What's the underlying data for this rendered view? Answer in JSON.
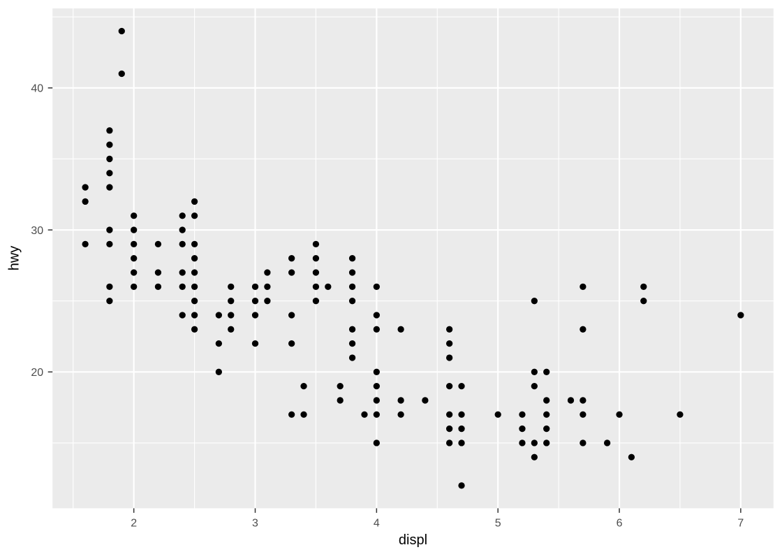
{
  "chart_data": {
    "type": "scatter",
    "title": "",
    "xlabel": "displ",
    "ylabel": "hwy",
    "xlim": [
      1.33,
      7.27
    ],
    "ylim": [
      10.4,
      45.6
    ],
    "x_ticks": [
      2,
      3,
      4,
      5,
      6,
      7
    ],
    "y_ticks": [
      20,
      30,
      40
    ],
    "x_minor_breaks": [
      1.5,
      2.5,
      3.5,
      4.5,
      5.5,
      6.5
    ],
    "y_minor_breaks": [
      15,
      25,
      35,
      45
    ],
    "grid": "on",
    "legend": "none",
    "points": [
      [
        1.6,
        29
      ],
      [
        1.6,
        32
      ],
      [
        1.6,
        33
      ],
      [
        1.8,
        25
      ],
      [
        1.8,
        26
      ],
      [
        1.8,
        29
      ],
      [
        1.8,
        30
      ],
      [
        1.8,
        33
      ],
      [
        1.8,
        34
      ],
      [
        1.8,
        35
      ],
      [
        1.8,
        36
      ],
      [
        1.8,
        37
      ],
      [
        1.9,
        41
      ],
      [
        1.9,
        44
      ],
      [
        2.0,
        26
      ],
      [
        2.0,
        27
      ],
      [
        2.0,
        28
      ],
      [
        2.0,
        29
      ],
      [
        2.0,
        30
      ],
      [
        2.0,
        31
      ],
      [
        2.2,
        26
      ],
      [
        2.2,
        27
      ],
      [
        2.2,
        29
      ],
      [
        2.4,
        24
      ],
      [
        2.4,
        26
      ],
      [
        2.4,
        27
      ],
      [
        2.4,
        29
      ],
      [
        2.4,
        30
      ],
      [
        2.4,
        31
      ],
      [
        2.5,
        23
      ],
      [
        2.5,
        24
      ],
      [
        2.5,
        25
      ],
      [
        2.5,
        26
      ],
      [
        2.5,
        27
      ],
      [
        2.5,
        28
      ],
      [
        2.5,
        29
      ],
      [
        2.5,
        31
      ],
      [
        2.5,
        32
      ],
      [
        2.7,
        20
      ],
      [
        2.7,
        22
      ],
      [
        2.7,
        24
      ],
      [
        2.8,
        23
      ],
      [
        2.8,
        24
      ],
      [
        2.8,
        25
      ],
      [
        2.8,
        26
      ],
      [
        3.0,
        22
      ],
      [
        3.0,
        24
      ],
      [
        3.0,
        25
      ],
      [
        3.0,
        26
      ],
      [
        3.1,
        25
      ],
      [
        3.1,
        26
      ],
      [
        3.1,
        27
      ],
      [
        3.3,
        17
      ],
      [
        3.3,
        22
      ],
      [
        3.3,
        24
      ],
      [
        3.3,
        27
      ],
      [
        3.3,
        28
      ],
      [
        3.4,
        17
      ],
      [
        3.4,
        19
      ],
      [
        3.5,
        25
      ],
      [
        3.5,
        26
      ],
      [
        3.5,
        27
      ],
      [
        3.5,
        28
      ],
      [
        3.5,
        29
      ],
      [
        3.6,
        26
      ],
      [
        3.7,
        18
      ],
      [
        3.7,
        19
      ],
      [
        3.8,
        21
      ],
      [
        3.8,
        22
      ],
      [
        3.8,
        23
      ],
      [
        3.8,
        25
      ],
      [
        3.8,
        26
      ],
      [
        3.8,
        27
      ],
      [
        3.8,
        28
      ],
      [
        3.9,
        17
      ],
      [
        4.0,
        15
      ],
      [
        4.0,
        17
      ],
      [
        4.0,
        18
      ],
      [
        4.0,
        19
      ],
      [
        4.0,
        20
      ],
      [
        4.0,
        23
      ],
      [
        4.0,
        24
      ],
      [
        4.0,
        26
      ],
      [
        4.2,
        17
      ],
      [
        4.2,
        18
      ],
      [
        4.2,
        23
      ],
      [
        4.4,
        18
      ],
      [
        4.6,
        15
      ],
      [
        4.6,
        16
      ],
      [
        4.6,
        17
      ],
      [
        4.6,
        19
      ],
      [
        4.6,
        21
      ],
      [
        4.6,
        22
      ],
      [
        4.6,
        23
      ],
      [
        4.7,
        12
      ],
      [
        4.7,
        15
      ],
      [
        4.7,
        16
      ],
      [
        4.7,
        17
      ],
      [
        4.7,
        19
      ],
      [
        5.0,
        17
      ],
      [
        5.2,
        15
      ],
      [
        5.2,
        16
      ],
      [
        5.2,
        17
      ],
      [
        5.3,
        14
      ],
      [
        5.3,
        15
      ],
      [
        5.3,
        19
      ],
      [
        5.3,
        20
      ],
      [
        5.3,
        25
      ],
      [
        5.4,
        15
      ],
      [
        5.4,
        16
      ],
      [
        5.4,
        17
      ],
      [
        5.4,
        18
      ],
      [
        5.4,
        20
      ],
      [
        5.6,
        18
      ],
      [
        5.7,
        15
      ],
      [
        5.7,
        17
      ],
      [
        5.7,
        18
      ],
      [
        5.7,
        23
      ],
      [
        5.7,
        26
      ],
      [
        5.9,
        15
      ],
      [
        6.0,
        17
      ],
      [
        6.1,
        14
      ],
      [
        6.2,
        25
      ],
      [
        6.2,
        26
      ],
      [
        6.5,
        17
      ],
      [
        7.0,
        24
      ]
    ],
    "colors": {
      "page_background": "#FFFFFF",
      "panel_background": "#EBEBEB",
      "gridline": "#FFFFFF",
      "point": "#000000",
      "tick_mark": "#333333",
      "tick_label": "#4D4D4D",
      "axis_title": "#000000"
    }
  }
}
